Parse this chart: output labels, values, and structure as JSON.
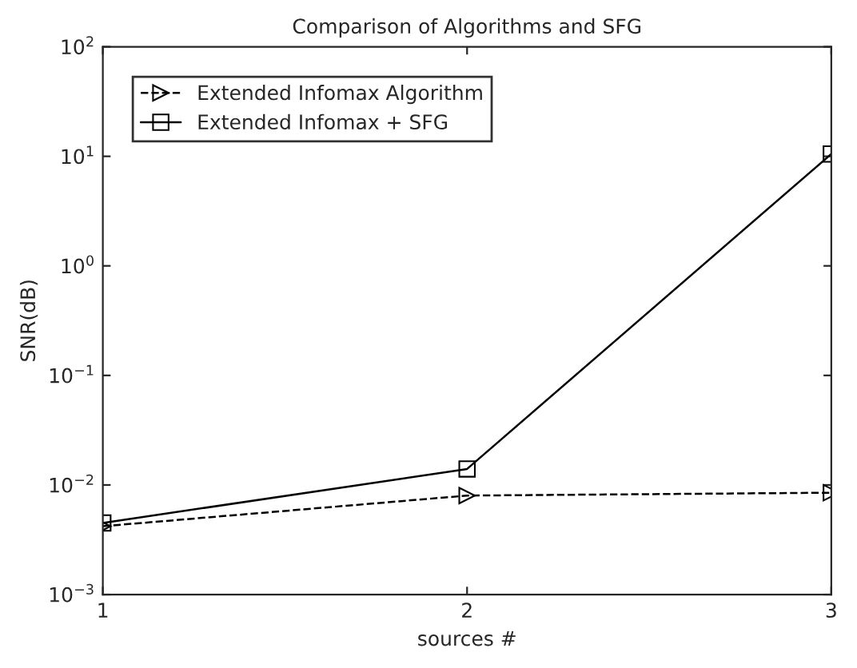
{
  "chart_data": {
    "type": "line",
    "title": "Comparison of Algorithms and SFG",
    "xlabel": "sources #",
    "ylabel": "SNR(dB)",
    "x": [
      1,
      2,
      3
    ],
    "series": [
      {
        "name": "Extended Infomax Algorithm",
        "color": "#000000",
        "values": [
          0.0042,
          0.008,
          0.0085
        ],
        "marker": "triangle",
        "line_style": "dashed"
      },
      {
        "name": "Extended Infomax + SFG",
        "color": "#000000",
        "values": [
          0.0045,
          0.014,
          10.5
        ],
        "marker": "square",
        "line_style": "solid"
      }
    ],
    "log": true,
    "xlim": [
      1,
      3
    ],
    "xticks": [
      1,
      2,
      3
    ],
    "ylim": [
      0.001,
      100
    ],
    "yticks": [
      {
        "value": 0.001,
        "label": "10$^{−3}$"
      },
      {
        "value": 0.01,
        "label": "10$^{−2}$"
      },
      {
        "value": 0.1,
        "label": "10$^{−1}$"
      },
      {
        "value": 1,
        "label": "10$^{0}$"
      },
      {
        "value": 10,
        "label": "10$^{1}$"
      },
      {
        "value": 100,
        "label": "10$^{2}$"
      }
    ],
    "grid": false,
    "legend": "top left"
  }
}
